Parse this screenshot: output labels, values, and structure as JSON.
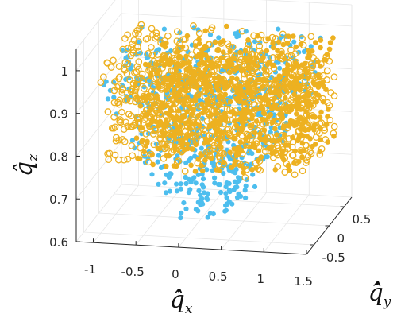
{
  "chart_data": {
    "type": "scatter",
    "title": "",
    "xlabel": "q̂̇",
    "xlabel_sub": "x",
    "ylabel": "q̂̇",
    "ylabel_sub": "y",
    "zlabel": "q̂",
    "zlabel_sub": "z",
    "xlim": [
      -1.2,
      1.5
    ],
    "ylim": [
      -0.75,
      0.75
    ],
    "zlim": [
      0.6,
      1.05
    ],
    "x_ticks": [
      "-1",
      "-0.5",
      "0",
      "0.5",
      "1",
      "1.5"
    ],
    "x_tick_values": [
      -1,
      -0.5,
      0,
      0.5,
      1,
      1.5
    ],
    "y_ticks": [
      "-0.5",
      "0",
      "0.5"
    ],
    "y_tick_values": [
      -0.5,
      0,
      0.5
    ],
    "z_ticks": [
      "0.6",
      "0.7",
      "0.8",
      "0.9",
      "1"
    ],
    "z_tick_values": [
      0.6,
      0.7,
      0.8,
      0.9,
      1.0
    ],
    "grid": true,
    "legend": "none",
    "series": [
      {
        "marker": "filled-circle",
        "color": "#4DBEEE",
        "x_range": [
          -0.9,
          1.2
        ],
        "y_range": [
          -0.7,
          0.7
        ],
        "z_range": [
          0.62,
          1.0
        ]
      },
      {
        "marker": "open-circle",
        "color": "#EDB120",
        "x_range": [
          -1.0,
          1.4
        ],
        "y_range": [
          -0.7,
          0.7
        ],
        "z_range": [
          0.76,
          1.0
        ]
      }
    ]
  }
}
